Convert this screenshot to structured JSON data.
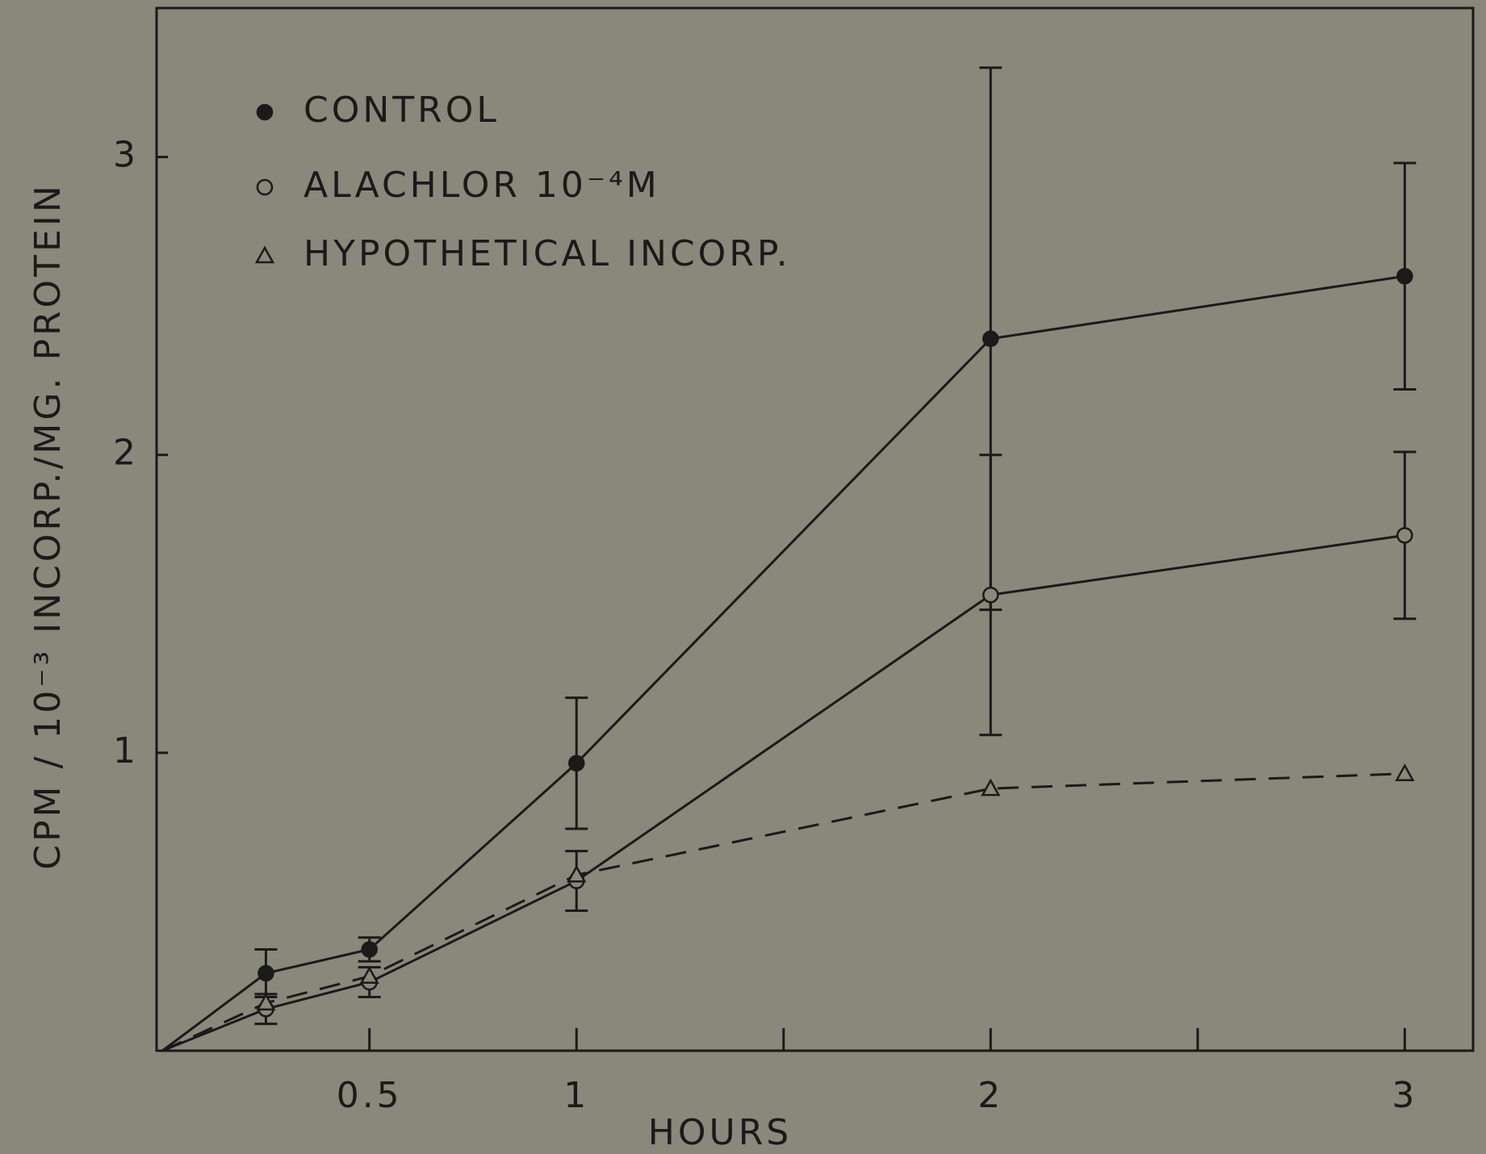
{
  "chart_data": {
    "type": "line",
    "xlabel": "HOURS",
    "ylabel": "CPM / 10⁻³ INCORP./MG. PROTEIN",
    "x": [
      0,
      0.25,
      0.5,
      1,
      2,
      3
    ],
    "series": [
      {
        "name": "CONTROL",
        "color": "#1a1a1a",
        "marker": "filled-circle",
        "dash": false,
        "values": [
          0,
          0.26,
          0.34,
          0.965,
          2.39,
          2.6
        ],
        "errors": [
          null,
          0.08,
          0.04,
          0.22,
          0.91,
          0.38
        ]
      },
      {
        "name": "ALACHLOR 10⁻⁴M",
        "color": "#1a1a1a",
        "marker": "open-circle",
        "dash": false,
        "values": [
          0,
          0.14,
          0.23,
          0.57,
          1.53,
          1.73
        ],
        "errors": [
          null,
          0.05,
          0.05,
          0.1,
          0.47,
          0.28
        ]
      },
      {
        "name": "HYPOTHETICAL INCORP.",
        "color": "#1a1a1a",
        "marker": "open-triangle",
        "dash": true,
        "values": [
          0,
          0.16,
          0.25,
          0.59,
          0.88,
          0.93
        ]
      }
    ],
    "xlim": [
      -0.014,
      3.165
    ],
    "ylim": [
      0,
      3.5
    ],
    "xticks": [
      0.5,
      1,
      2,
      3
    ],
    "xminorticks": [
      1.5,
      2.5
    ],
    "yticks": [
      1,
      2,
      3
    ],
    "legend": "upper left",
    "background": "#8a877b"
  }
}
